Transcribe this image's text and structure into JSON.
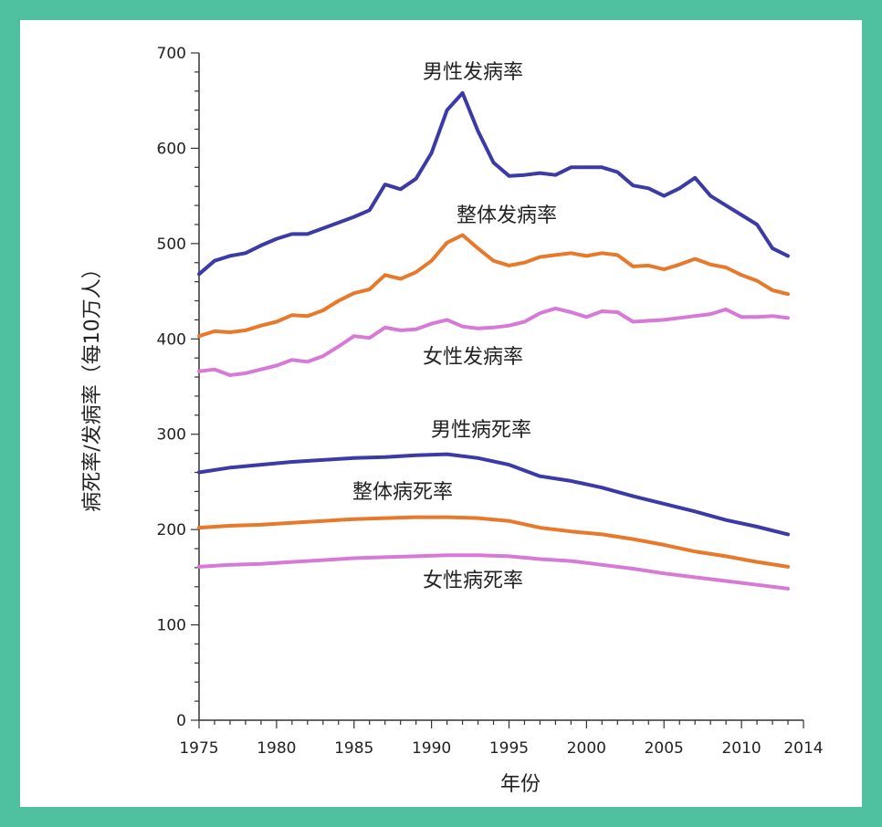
{
  "chart_data": {
    "type": "line",
    "xlabel": "年份",
    "ylabel": "病死率/发病率（每10万人）",
    "xlim": [
      1975,
      2014
    ],
    "ylim": [
      0,
      700
    ],
    "xticks": [
      1975,
      1980,
      1985,
      1990,
      1995,
      2000,
      2005,
      2010,
      2014
    ],
    "yticks": [
      0,
      100,
      200,
      300,
      400,
      500,
      600,
      700
    ],
    "grid": false,
    "legend": "inline labels next to lines",
    "series": [
      {
        "name": "男性发病率",
        "color": "#3b3aa6",
        "x": [
          1975,
          1976,
          1977,
          1978,
          1979,
          1980,
          1981,
          1982,
          1983,
          1984,
          1985,
          1986,
          1987,
          1988,
          1989,
          1990,
          1991,
          1992,
          1993,
          1994,
          1995,
          1996,
          1997,
          1998,
          1999,
          2000,
          2001,
          2002,
          2003,
          2004,
          2005,
          2006,
          2007,
          2008,
          2009,
          2010,
          2011,
          2012,
          2013
        ],
        "values": [
          468,
          482,
          487,
          490,
          498,
          505,
          510,
          510,
          516,
          522,
          528,
          535,
          562,
          557,
          568,
          595,
          640,
          658,
          618,
          585,
          571,
          572,
          574,
          572,
          580,
          580,
          580,
          575,
          561,
          558,
          550,
          558,
          569,
          550,
          540,
          530,
          520,
          495,
          487
        ]
      },
      {
        "name": "整体发病率",
        "color": "#e8782a",
        "x": [
          1975,
          1976,
          1977,
          1978,
          1979,
          1980,
          1981,
          1982,
          1983,
          1984,
          1985,
          1986,
          1987,
          1988,
          1989,
          1990,
          1991,
          1992,
          1993,
          1994,
          1995,
          1996,
          1997,
          1998,
          1999,
          2000,
          2001,
          2002,
          2003,
          2004,
          2005,
          2006,
          2007,
          2008,
          2009,
          2010,
          2011,
          2012,
          2013
        ],
        "values": [
          403,
          408,
          407,
          409,
          414,
          418,
          425,
          424,
          430,
          440,
          448,
          452,
          467,
          463,
          470,
          482,
          501,
          509,
          495,
          482,
          477,
          480,
          486,
          488,
          490,
          487,
          490,
          488,
          476,
          477,
          473,
          478,
          484,
          478,
          475,
          467,
          461,
          451,
          447
        ]
      },
      {
        "name": "女性发病率",
        "color": "#d679d7",
        "x": [
          1975,
          1976,
          1977,
          1978,
          1979,
          1980,
          1981,
          1982,
          1983,
          1984,
          1985,
          1986,
          1987,
          1988,
          1989,
          1990,
          1991,
          1992,
          1993,
          1994,
          1995,
          1996,
          1997,
          1998,
          1999,
          2000,
          2001,
          2002,
          2003,
          2004,
          2005,
          2006,
          2007,
          2008,
          2009,
          2010,
          2011,
          2012,
          2013
        ],
        "values": [
          366,
          368,
          362,
          364,
          368,
          372,
          378,
          376,
          382,
          392,
          403,
          401,
          412,
          409,
          410,
          416,
          420,
          413,
          411,
          412,
          414,
          418,
          427,
          432,
          428,
          423,
          429,
          428,
          418,
          419,
          420,
          422,
          424,
          426,
          431,
          423,
          423,
          424,
          422
        ]
      },
      {
        "name": "男性病死率",
        "color": "#3b3aa6",
        "x": [
          1975,
          1977,
          1979,
          1981,
          1983,
          1985,
          1987,
          1989,
          1991,
          1993,
          1995,
          1997,
          1999,
          2001,
          2003,
          2005,
          2007,
          2009,
          2011,
          2013
        ],
        "values": [
          260,
          265,
          268,
          271,
          273,
          275,
          276,
          278,
          279,
          275,
          268,
          256,
          251,
          244,
          235,
          227,
          219,
          210,
          203,
          195
        ]
      },
      {
        "name": "整体病死率",
        "color": "#e8782a",
        "x": [
          1975,
          1977,
          1979,
          1981,
          1983,
          1985,
          1987,
          1989,
          1991,
          1993,
          1995,
          1997,
          1999,
          2001,
          2003,
          2005,
          2007,
          2009,
          2011,
          2013
        ],
        "values": [
          202,
          204,
          205,
          207,
          209,
          211,
          212,
          213,
          213,
          212,
          209,
          202,
          198,
          195,
          190,
          184,
          177,
          172,
          166,
          161
        ]
      },
      {
        "name": "女性病死率",
        "color": "#d679d7",
        "x": [
          1975,
          1977,
          1979,
          1981,
          1983,
          1985,
          1987,
          1989,
          1991,
          1993,
          1995,
          1997,
          1999,
          2001,
          2003,
          2005,
          2007,
          2009,
          2011,
          2013
        ],
        "values": [
          161,
          163,
          164,
          166,
          168,
          170,
          171,
          172,
          173,
          173,
          172,
          169,
          167,
          163,
          159,
          154,
          150,
          146,
          142,
          138
        ]
      }
    ]
  }
}
